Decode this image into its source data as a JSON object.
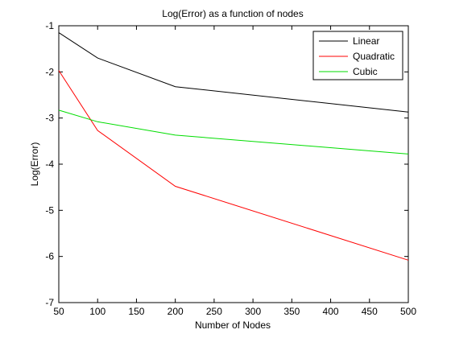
{
  "chart_data": {
    "type": "line",
    "title": "Log(Error) as a function of nodes",
    "xlabel": "Number of Nodes",
    "ylabel": "Log(Error)",
    "xlim": [
      50,
      500
    ],
    "ylim": [
      -7,
      -1
    ],
    "xticks": [
      50,
      100,
      150,
      200,
      250,
      300,
      350,
      400,
      450,
      500
    ],
    "yticks": [
      -1,
      -2,
      -3,
      -4,
      -5,
      -6,
      -7
    ],
    "grid": false,
    "legend_position": "top-right",
    "x": [
      50,
      100,
      200,
      500
    ],
    "series": [
      {
        "name": "Linear",
        "color": "#000000",
        "values": [
          -1.15,
          -1.7,
          -2.32,
          -2.87
        ]
      },
      {
        "name": "Quadratic",
        "color": "#ff0000",
        "values": [
          -1.97,
          -3.27,
          -4.48,
          -6.08
        ]
      },
      {
        "name": "Cubic",
        "color": "#00dd00",
        "values": [
          -2.83,
          -3.08,
          -3.37,
          -3.78
        ]
      }
    ]
  }
}
